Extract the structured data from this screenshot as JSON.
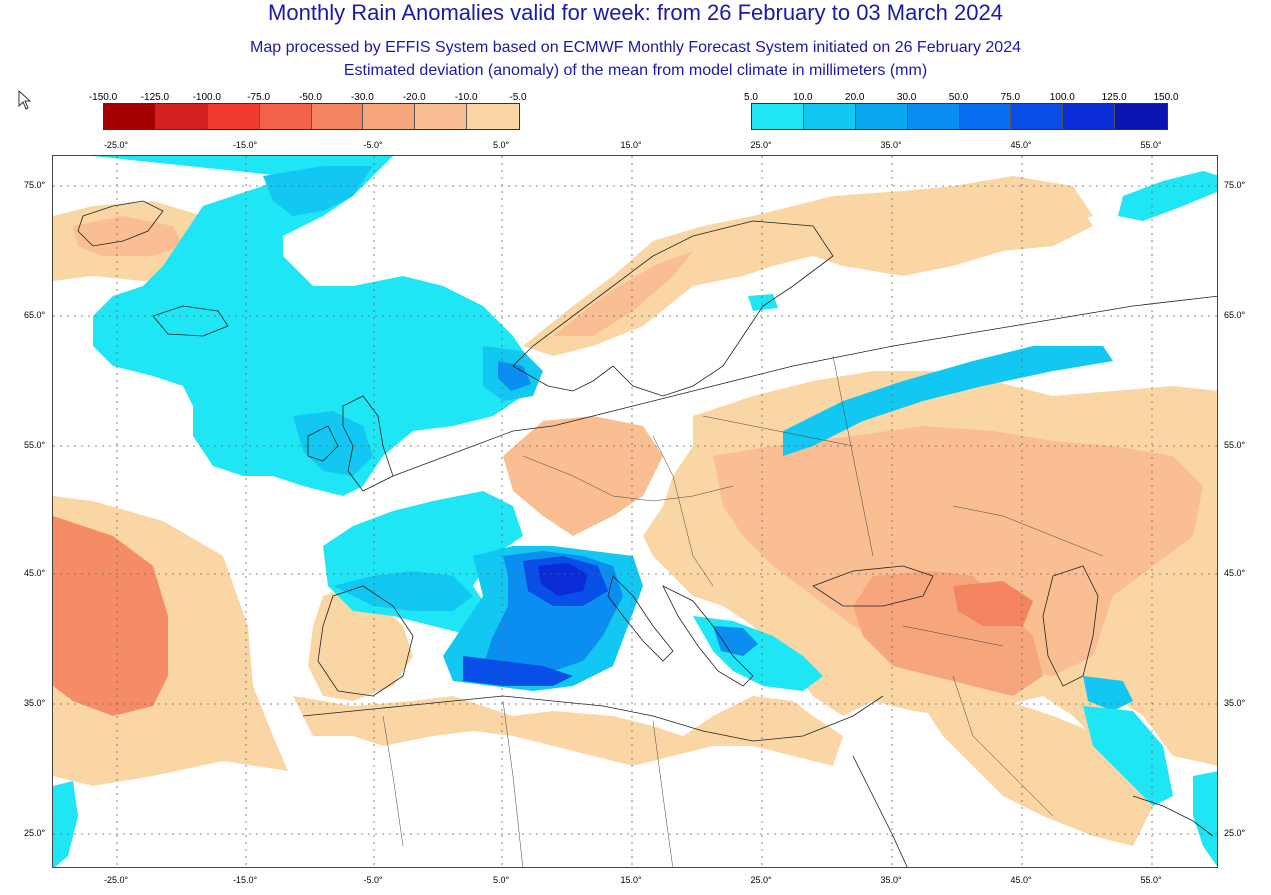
{
  "titles": {
    "main": "Monthly Rain Anomalies valid for week: from 26 February to 03 March 2024",
    "sub1": "Map processed by EFFIS System based on ECMWF Monthly Forecast System initiated on 26 February 2024",
    "sub2": "Estimated deviation (anomaly) of the mean from model climate in millimeters (mm)"
  },
  "colorbar_negative": {
    "labels": [
      "-150.0",
      "-125.0",
      "-100.0",
      "-75.0",
      "-50.0",
      "-30.0",
      "-20.0",
      "-10.0",
      "-5.0"
    ],
    "colors": [
      "#a50000",
      "#d4201e",
      "#f23a2e",
      "#f4614a",
      "#f4845f",
      "#f7a57c",
      "#f9bf92",
      "#fbd6a5"
    ]
  },
  "colorbar_positive": {
    "labels": [
      "5.0",
      "10.0",
      "20.0",
      "30.0",
      "50.0",
      "75.0",
      "100.0",
      "125.0",
      "150.0"
    ],
    "colors": [
      "#1ee6f5",
      "#12c7f2",
      "#0aa8ef",
      "#0a8ef0",
      "#0a6ef0",
      "#0a4ee8",
      "#0a2cd6",
      "#0a12b0"
    ]
  },
  "axes": {
    "lon_ticks": [
      "-25.0°",
      "-15.0°",
      "-5.0°",
      "5.0°",
      "15.0°",
      "25.0°",
      "35.0°",
      "45.0°",
      "55.0°"
    ],
    "lat_ticks": [
      "75.0°",
      "65.0°",
      "55.0°",
      "45.0°",
      "35.0°",
      "25.0°"
    ]
  },
  "colors": {
    "title": "#1a1aa8",
    "dry_light": "#fbd6a5",
    "dry_mid": "#f9bf92",
    "dry_strong": "#f7a57c",
    "dry_stronger": "#f4845f",
    "wet_light": "#1ee6f5",
    "wet_mid": "#12c7f2",
    "wet_strong": "#0a8ef0",
    "wet_stronger": "#0a4ee8",
    "wet_max": "#0a2cd6"
  }
}
